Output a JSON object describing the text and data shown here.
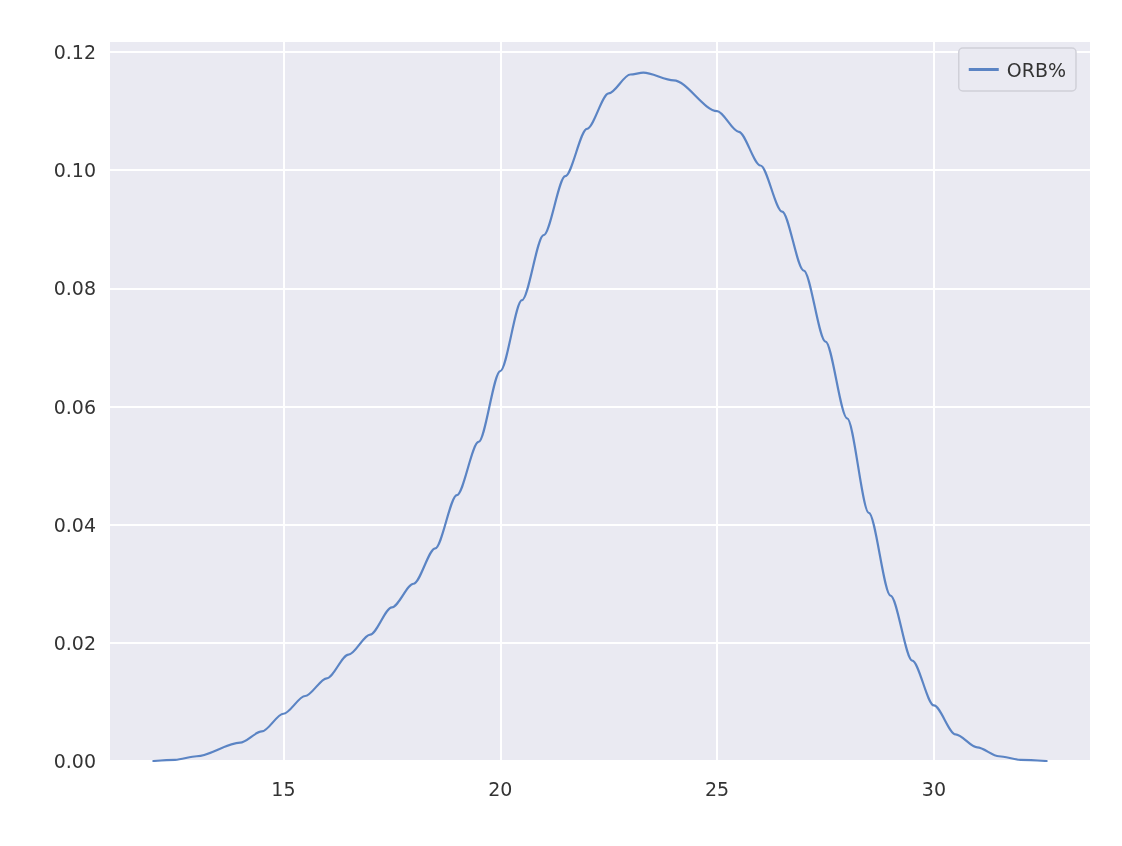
{
  "chart_data": {
    "type": "line",
    "xlim": [
      11.0,
      33.6
    ],
    "ylim": [
      0,
      0.1217
    ],
    "xticks": [
      15,
      20,
      25,
      30
    ],
    "yticks": [
      {
        "value": 0,
        "label": "0.00"
      },
      {
        "value": 0.02,
        "label": "0.02"
      },
      {
        "value": 0.04,
        "label": "0.04"
      },
      {
        "value": 0.06,
        "label": "0.06"
      },
      {
        "value": 0.08,
        "label": "0.08"
      },
      {
        "value": 0.1,
        "label": "0.10"
      },
      {
        "value": 0.12,
        "label": "0.12"
      }
    ],
    "grid": true,
    "legend": "top right",
    "marker": "none",
    "line_style": "solid",
    "series": [
      {
        "name": "ORB%",
        "color": "#5b84c4",
        "x": [
          12.0,
          12.5,
          13,
          14,
          14.5,
          15,
          15.5,
          16,
          16.5,
          17,
          17.5,
          18,
          18.5,
          19,
          19.5,
          20,
          20.5,
          21,
          21.5,
          22,
          22.5,
          23,
          23.3,
          24,
          25,
          25.5,
          26,
          26.5,
          27,
          27.5,
          28,
          28.5,
          29,
          29.5,
          30,
          30.5,
          31,
          31.5,
          32,
          32.6
        ],
        "values": [
          0,
          0.0002,
          0.0008,
          0.0031,
          0.005,
          0.008,
          0.011,
          0.014,
          0.018,
          0.0214,
          0.026,
          0.03,
          0.036,
          0.045,
          0.054,
          0.066,
          0.078,
          0.089,
          0.099,
          0.107,
          0.113,
          0.1162,
          0.1165,
          0.1152,
          0.11,
          0.1065,
          0.1008,
          0.093,
          0.083,
          0.071,
          0.058,
          0.042,
          0.028,
          0.017,
          0.0094,
          0.0045,
          0.0023,
          0.0008,
          0.0002,
          0
        ]
      }
    ]
  }
}
